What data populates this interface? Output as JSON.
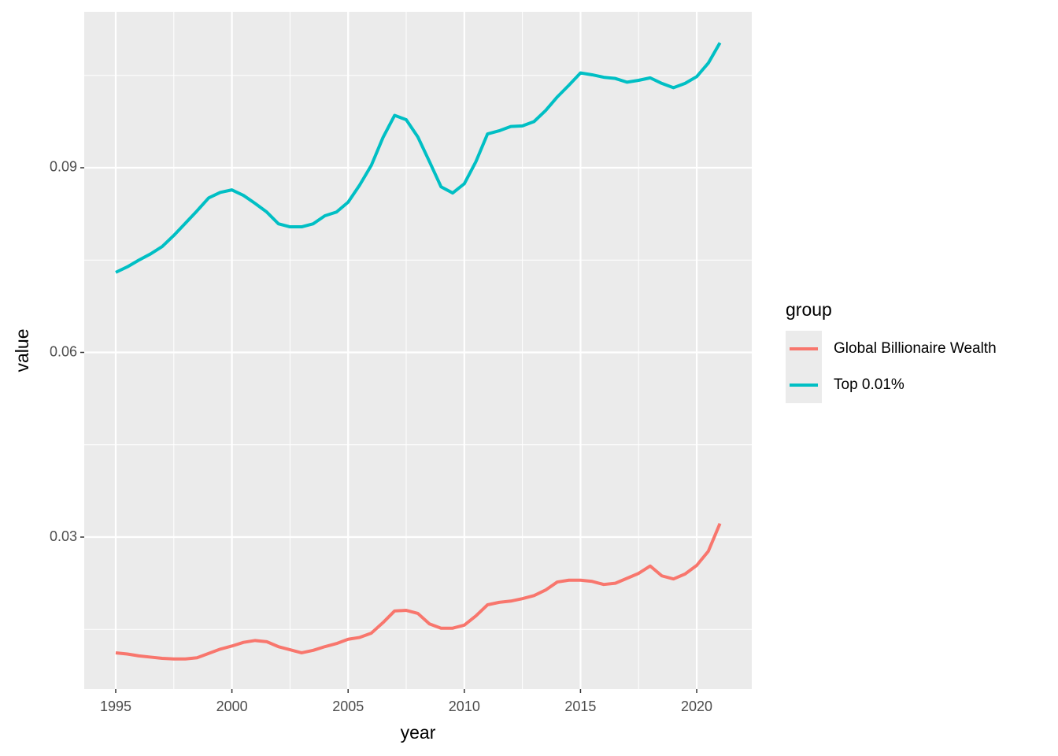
{
  "chart_data": {
    "type": "line",
    "x_label": "year",
    "y_label": "value",
    "x": [
      1995,
      1995.5,
      1996,
      1996.5,
      1997,
      1997.5,
      1998,
      1998.5,
      1999,
      1999.5,
      2000,
      2000.5,
      2001,
      2001.5,
      2002,
      2002.5,
      2003,
      2003.5,
      2004,
      2004.5,
      2005,
      2005.5,
      2006,
      2006.5,
      2007,
      2007.5,
      2008,
      2008.5,
      2009,
      2009.5,
      2010,
      2010.5,
      2011,
      2011.5,
      2012,
      2012.5,
      2013,
      2013.5,
      2014,
      2014.5,
      2015,
      2015.5,
      2016,
      2016.5,
      2017,
      2017.5,
      2018,
      2018.5,
      2019,
      2019.5,
      2020,
      2020.5,
      2021
    ],
    "series": [
      {
        "name": "Global Billionaire Wealth",
        "color": "#f8766d",
        "values": [
          0.0112,
          0.011,
          0.0107,
          0.0105,
          0.0103,
          0.0102,
          0.0102,
          0.0104,
          0.0111,
          0.0118,
          0.0123,
          0.0129,
          0.0132,
          0.013,
          0.0122,
          0.0117,
          0.0112,
          0.0116,
          0.0122,
          0.0127,
          0.0134,
          0.0137,
          0.0144,
          0.0161,
          0.018,
          0.0181,
          0.0176,
          0.0159,
          0.0152,
          0.0152,
          0.0157,
          0.0172,
          0.019,
          0.0194,
          0.0196,
          0.02,
          0.0205,
          0.0214,
          0.0227,
          0.023,
          0.023,
          0.0228,
          0.0223,
          0.0225,
          0.0233,
          0.0241,
          0.0253,
          0.0237,
          0.0232,
          0.024,
          0.0254,
          0.0277,
          0.0322
        ]
      },
      {
        "name": "Top 0.01%",
        "color": "#00bfc4",
        "values": [
          0.073,
          0.0739,
          0.075,
          0.076,
          0.0772,
          0.079,
          0.081,
          0.083,
          0.0851,
          0.086,
          0.0864,
          0.0855,
          0.0842,
          0.0828,
          0.0809,
          0.0804,
          0.0804,
          0.0809,
          0.0822,
          0.0828,
          0.0844,
          0.0872,
          0.0904,
          0.0949,
          0.0985,
          0.0978,
          0.095,
          0.091,
          0.0869,
          0.0859,
          0.0874,
          0.091,
          0.0955,
          0.096,
          0.0967,
          0.0968,
          0.0975,
          0.0993,
          0.1015,
          0.1034,
          0.1054,
          0.1051,
          0.1047,
          0.1045,
          0.1039,
          0.1042,
          0.1046,
          0.1037,
          0.103,
          0.1037,
          0.1048,
          0.107,
          0.1103
        ]
      }
    ],
    "xlim": [
      1993.645,
      2022.37
    ],
    "xticks": [
      1995,
      2000,
      2005,
      2010,
      2015,
      2020
    ],
    "ylim": [
      0.00531,
      0.11533
    ],
    "yticks": [
      0.03,
      0.06,
      0.09
    ],
    "grid": true,
    "legend_title": "group",
    "legend_position": "right"
  }
}
